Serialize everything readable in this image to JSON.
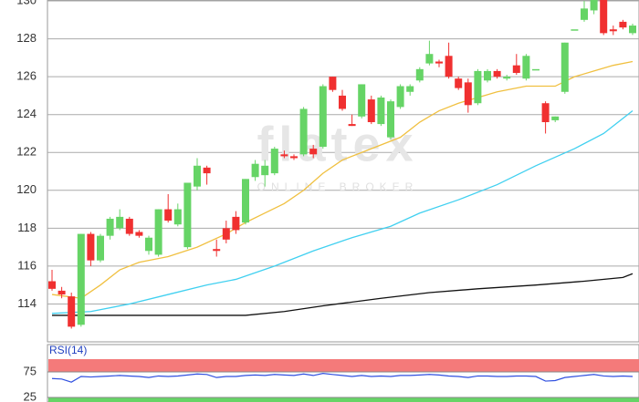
{
  "chart_data": [
    {
      "type": "candlestick",
      "watermark": [
        "flatex",
        "ONLINE BROKER"
      ],
      "ylim": [
        112,
        130.05
      ],
      "yticks": [
        114,
        116,
        118,
        120,
        122,
        124,
        126,
        128,
        130
      ],
      "grid": true,
      "up_color": "#66d466",
      "down_color": "#f03030",
      "open": [
        115.2,
        114.7,
        114.4,
        112.9,
        117.7,
        116.3,
        117.6,
        118,
        118.5,
        117.8,
        116.8,
        116.6,
        119,
        118.2,
        117,
        120.2,
        121.2,
        116.9,
        118,
        118.6,
        118.3,
        120.7,
        120.8,
        120.9,
        121.9,
        121.8,
        121.9,
        122.2,
        122.3,
        126,
        125,
        123.5,
        123.9,
        124.8,
        123.5,
        122.8,
        124.4,
        125.2,
        125.8,
        126.7,
        126.8,
        127.1,
        125.9,
        125.7,
        124.6,
        125.8,
        126.3,
        125.9,
        126.6,
        125.9,
        126.4,
        124.6,
        123.7,
        125.2,
        128.5,
        129,
        129.5,
        130.1,
        128.5,
        128.9,
        128.3
      ],
      "high": [
        115.8,
        114.9,
        114.6,
        117.7,
        117.8,
        117.7,
        118.6,
        119,
        118.6,
        117.9,
        117.6,
        119,
        119.8,
        119.3,
        120.4,
        121.7,
        121.3,
        117.4,
        118.4,
        118.9,
        120.6,
        121.6,
        121.6,
        122.3,
        122.1,
        121.9,
        124.4,
        122.4,
        125.6,
        126,
        125.3,
        124,
        125.6,
        125,
        125,
        124.8,
        125.6,
        125.6,
        126.5,
        127.9,
        126.9,
        127.8,
        126,
        125.9,
        126.4,
        126.4,
        126.4,
        126.1,
        127.2,
        127.2,
        126.4,
        124.7,
        123.9,
        127.8,
        128.5,
        130,
        130.1,
        130.1,
        128.7,
        129,
        128.8
      ],
      "low": [
        114.7,
        114.3,
        112.7,
        112.8,
        116,
        116.2,
        117.4,
        117.9,
        117.6,
        117.5,
        116.6,
        116.5,
        118.3,
        118.1,
        116.9,
        120,
        120.3,
        116.5,
        117.2,
        117.7,
        118.2,
        120.5,
        120.2,
        120.8,
        121.7,
        121.6,
        121.8,
        121.7,
        122.2,
        125.2,
        124.2,
        123.4,
        123.8,
        123.5,
        123.4,
        122.7,
        124.3,
        125,
        125.7,
        126.6,
        126.5,
        125.9,
        125.3,
        124.1,
        124.5,
        125.7,
        125.9,
        125.8,
        126.1,
        125.8,
        126.4,
        123,
        123.6,
        125.1,
        128.5,
        128.9,
        129.3,
        128.2,
        128.2,
        128.5,
        128.2
      ],
      "close": [
        114.8,
        114.5,
        112.8,
        117.7,
        116.3,
        117.6,
        118.5,
        118.6,
        117.7,
        117.6,
        117.5,
        119,
        118.4,
        119,
        120.4,
        121.3,
        120.9,
        116.8,
        117.4,
        117.9,
        120.6,
        121.4,
        121.3,
        122.2,
        121.8,
        121.7,
        124.3,
        121.9,
        125.5,
        125.3,
        124.3,
        123.4,
        125.6,
        123.6,
        124.9,
        124.7,
        125.5,
        125.5,
        126.4,
        127.2,
        126.7,
        126,
        125.4,
        124.5,
        126.3,
        126.3,
        126,
        126,
        126.2,
        127.1,
        126.4,
        123.6,
        123.9,
        127.8,
        128.5,
        129.6,
        130.1,
        128.3,
        128.4,
        128.6,
        128.7
      ],
      "series": [
        {
          "color": "#f0c040",
          "x": [
            0,
            3,
            5,
            7,
            9,
            12,
            15,
            18,
            20,
            22,
            24,
            26,
            28,
            30,
            33,
            36,
            38,
            40,
            42,
            44,
            46,
            49,
            52,
            54,
            56,
            58,
            60
          ],
          "values": [
            114.5,
            114.3,
            115,
            115.8,
            116.2,
            116.5,
            117,
            117.7,
            118.3,
            118.8,
            119.3,
            120,
            120.9,
            121.6,
            122.2,
            122.8,
            123.6,
            124.2,
            124.6,
            124.9,
            125.2,
            125.5,
            125.5,
            126,
            126.3,
            126.6,
            126.8
          ]
        },
        {
          "color": "#40d0f0",
          "x": [
            0,
            4,
            8,
            12,
            16,
            19,
            23,
            27,
            31,
            35,
            38,
            42,
            46,
            50,
            54,
            57,
            60
          ],
          "values": [
            113.5,
            113.6,
            114,
            114.5,
            115,
            115.3,
            116,
            116.8,
            117.5,
            118.1,
            118.8,
            119.5,
            120.3,
            121.3,
            122.2,
            123,
            124.2
          ]
        },
        {
          "color": "#111111",
          "x": [
            0,
            20,
            24,
            28,
            34,
            39,
            44,
            50,
            55,
            59,
            60
          ],
          "values": [
            113.4,
            113.4,
            113.6,
            113.9,
            114.3,
            114.6,
            114.8,
            115,
            115.2,
            115.4,
            115.6
          ]
        }
      ]
    },
    {
      "type": "line",
      "title": "RSI(14)",
      "ylim": [
        16,
        100
      ],
      "yticks": [
        25,
        75
      ],
      "zones": [
        {
          "from": 75,
          "to": 100,
          "color": "#f47a7a"
        },
        {
          "from": 16,
          "to": 25,
          "color": "#66d466"
        }
      ],
      "series": [
        {
          "color": "#3050e0",
          "values": [
            62,
            61,
            55,
            66,
            65,
            66,
            67,
            68,
            67,
            66,
            64,
            67,
            66,
            67,
            69,
            71,
            70,
            64,
            66,
            66,
            68,
            69,
            68,
            70,
            69,
            68,
            71,
            68,
            72,
            70,
            68,
            66,
            68,
            66,
            67,
            66,
            68,
            68,
            69,
            70,
            69,
            67,
            66,
            64,
            67,
            67,
            66,
            66,
            67,
            67,
            66,
            57,
            58,
            64,
            66,
            68,
            70,
            67,
            66,
            67,
            66
          ]
        }
      ]
    }
  ]
}
